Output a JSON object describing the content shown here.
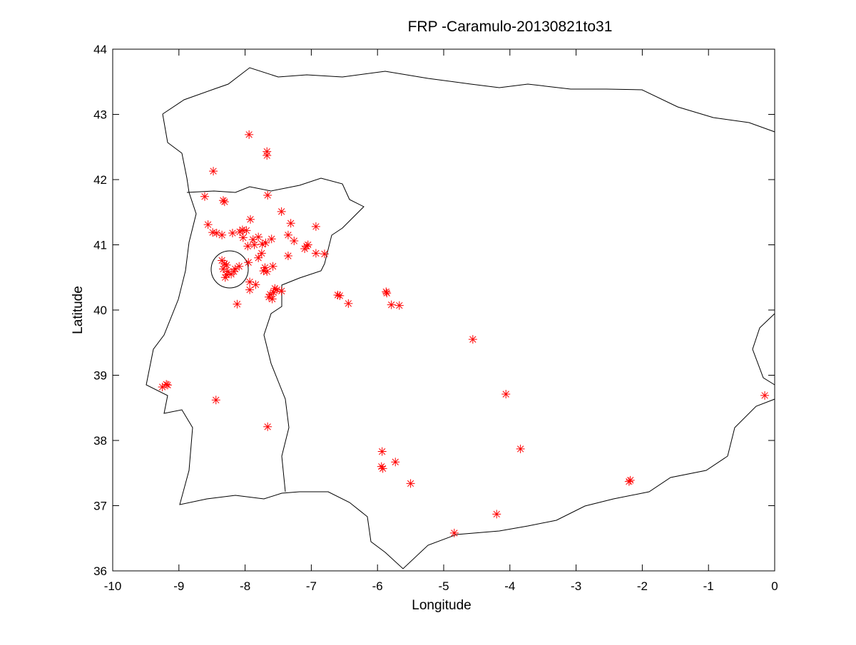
{
  "chart_data": {
    "type": "scatter",
    "title": "FRP -Caramulo-20130821to31",
    "x_label": "Longitude",
    "y_label": "Latitude",
    "xlim": [
      -10,
      0
    ],
    "ylim": [
      36,
      44
    ],
    "xticks": [
      -10,
      -9,
      -8,
      -7,
      -6,
      -5,
      -4,
      -3,
      -2,
      -1,
      0
    ],
    "yticks": [
      36,
      37,
      38,
      39,
      40,
      41,
      42,
      43,
      44
    ],
    "marker_color": "#ff0000",
    "x": [
      -7.94,
      -7.67,
      -7.67,
      -8.48,
      -8.61,
      -8.33,
      -8.31,
      -7.66,
      -7.45,
      -7.92,
      -8.56,
      -7.31,
      -6.93,
      -8.49,
      -8.43,
      -8.35,
      -8.19,
      -8.04,
      -8.08,
      -7.98,
      -8.03,
      -7.86,
      -7.74,
      -7.69,
      -7.8,
      -7.88,
      -7.96,
      -7.6,
      -7.35,
      -7.26,
      -7.07,
      -7.1,
      -7.05,
      -6.93,
      -6.8,
      -7.35,
      -7.75,
      -7.8,
      -7.95,
      -8.35,
      -8.31,
      -8.28,
      -8.33,
      -8.26,
      -8.28,
      -8.3,
      -8.21,
      -8.15,
      -8.09,
      -8.17,
      -7.7,
      -7.72,
      -7.67,
      -7.58,
      -7.93,
      -7.84,
      -7.93,
      -7.55,
      -7.52,
      -7.45,
      -7.57,
      -7.64,
      -7.62,
      -7.59,
      -8.12,
      -6.6,
      -6.57,
      -6.44,
      -5.87,
      -5.86,
      -5.79,
      -5.67,
      -4.56,
      -4.06,
      -0.15,
      -9.25,
      -9.19,
      -9.17,
      -8.44,
      -7.66,
      -5.93,
      -5.94,
      -5.92,
      -5.73,
      -5.5,
      -3.84,
      -2.2,
      -2.18,
      -4.2,
      -4.84
    ],
    "y": [
      42.69,
      42.43,
      42.37,
      42.13,
      41.74,
      41.68,
      41.66,
      41.76,
      41.51,
      41.39,
      41.31,
      41.33,
      41.28,
      41.19,
      41.18,
      41.15,
      41.18,
      41.23,
      41.2,
      41.22,
      41.11,
      41.0,
      41.01,
      41.03,
      41.12,
      41.08,
      40.98,
      41.09,
      41.15,
      41.06,
      40.98,
      40.94,
      41.0,
      40.87,
      40.86,
      40.83,
      40.87,
      40.8,
      40.73,
      40.76,
      40.71,
      40.69,
      40.63,
      40.59,
      40.54,
      40.5,
      40.55,
      40.63,
      40.67,
      40.59,
      40.65,
      40.6,
      40.59,
      40.67,
      40.43,
      40.39,
      40.31,
      40.33,
      40.31,
      40.29,
      40.27,
      40.2,
      40.24,
      40.17,
      40.09,
      40.23,
      40.22,
      40.1,
      40.28,
      40.26,
      40.08,
      40.07,
      39.55,
      38.71,
      38.69,
      38.82,
      38.86,
      38.85,
      38.62,
      38.21,
      37.83,
      37.6,
      37.57,
      37.67,
      37.34,
      37.87,
      37.37,
      37.39,
      36.87,
      36.58
    ]
  }
}
